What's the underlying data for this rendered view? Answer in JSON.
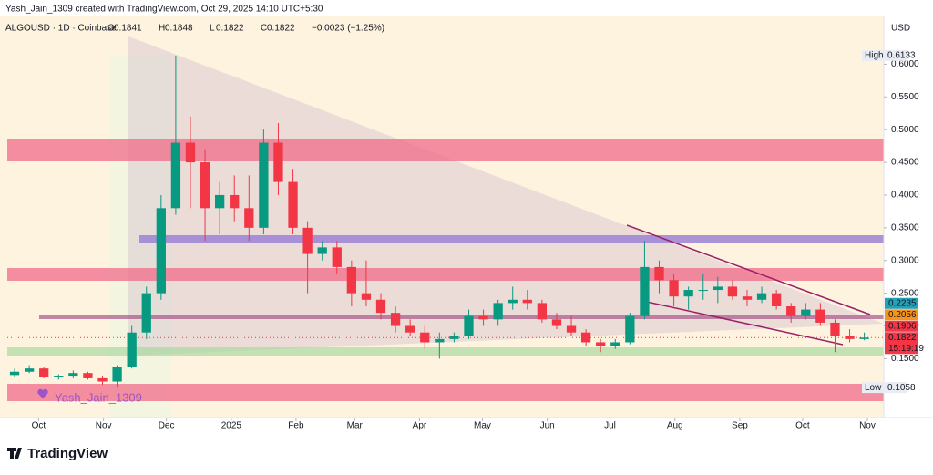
{
  "header": "Yash_Jain_1309 created with TradingView.com, Oct 29, 2025 14:10 UTC+5:30",
  "chart_data": {
    "type": "candlestick",
    "symbol": "ALGOUSD · 1D · Coinbase",
    "ohlc_legend": [
      {
        "label": "O",
        "value": 0.1841
      },
      {
        "label": "H",
        "value": 0.1848
      },
      {
        "label": "L",
        "value": 0.1822
      },
      {
        "label": "C",
        "value": 0.1822
      }
    ],
    "change": "−0.0023 (−1.25%)",
    "currency": "USD",
    "categories": [
      null,
      null,
      null,
      null,
      null,
      null,
      null,
      null,
      null,
      null,
      null,
      null,
      null,
      null,
      null,
      null,
      null,
      null,
      null,
      null,
      null,
      null,
      null,
      null,
      null,
      null,
      null,
      null,
      null,
      null,
      null,
      null,
      null,
      null,
      null,
      null,
      null,
      null,
      null,
      null,
      null,
      null,
      null,
      null,
      null,
      null,
      null,
      null,
      null,
      null,
      null,
      null,
      null,
      null,
      null,
      null,
      null,
      null,
      null
    ],
    "open": [
      0.125,
      0.13,
      0.135,
      0.122,
      0.124,
      0.128,
      0.12,
      0.115,
      0.138,
      0.19,
      0.25,
      0.38,
      0.48,
      0.45,
      0.38,
      0.4,
      0.38,
      0.35,
      0.48,
      0.42,
      0.35,
      0.31,
      0.32,
      0.29,
      0.25,
      0.24,
      0.22,
      0.2,
      0.19,
      0.175,
      0.18,
      0.185,
      0.215,
      0.21,
      0.235,
      0.24,
      0.235,
      0.21,
      0.2,
      0.19,
      0.175,
      0.17,
      0.175,
      0.215,
      0.29,
      0.27,
      0.245,
      0.255,
      0.255,
      0.26,
      0.245,
      0.24,
      0.25,
      0.23,
      0.215,
      0.225,
      0.205,
      0.185,
      0.18
    ],
    "high": [
      0.135,
      0.14,
      0.137,
      0.126,
      0.132,
      0.13,
      0.124,
      0.14,
      0.2,
      0.26,
      0.4,
      0.6133,
      0.52,
      0.47,
      0.42,
      0.43,
      0.43,
      0.5,
      0.51,
      0.44,
      0.36,
      0.33,
      0.33,
      0.3,
      0.3,
      0.25,
      0.23,
      0.21,
      0.2,
      0.19,
      0.19,
      0.225,
      0.225,
      0.24,
      0.26,
      0.255,
      0.24,
      0.22,
      0.215,
      0.195,
      0.18,
      0.18,
      0.22,
      0.33,
      0.3,
      0.28,
      0.26,
      0.28,
      0.275,
      0.27,
      0.255,
      0.26,
      0.255,
      0.235,
      0.235,
      0.235,
      0.21,
      0.195,
      0.19
    ],
    "low": [
      0.122,
      0.128,
      0.12,
      0.118,
      0.12,
      0.118,
      0.11,
      0.1058,
      0.135,
      0.18,
      0.24,
      0.37,
      0.38,
      0.33,
      0.34,
      0.36,
      0.33,
      0.34,
      0.4,
      0.34,
      0.25,
      0.3,
      0.28,
      0.23,
      0.23,
      0.21,
      0.19,
      0.185,
      0.165,
      0.15,
      0.175,
      0.18,
      0.2,
      0.2,
      0.225,
      0.225,
      0.205,
      0.195,
      0.185,
      0.17,
      0.16,
      0.165,
      0.172,
      0.21,
      0.25,
      0.23,
      0.225,
      0.24,
      0.235,
      0.24,
      0.23,
      0.235,
      0.225,
      0.205,
      0.21,
      0.2,
      0.16,
      0.175,
      0.178
    ],
    "close": [
      0.13,
      0.135,
      0.122,
      0.124,
      0.128,
      0.12,
      0.115,
      0.138,
      0.19,
      0.25,
      0.38,
      0.48,
      0.45,
      0.38,
      0.4,
      0.38,
      0.35,
      0.48,
      0.42,
      0.35,
      0.31,
      0.32,
      0.29,
      0.25,
      0.24,
      0.22,
      0.2,
      0.19,
      0.175,
      0.18,
      0.185,
      0.215,
      0.21,
      0.235,
      0.24,
      0.235,
      0.21,
      0.2,
      0.19,
      0.175,
      0.17,
      0.175,
      0.215,
      0.29,
      0.27,
      0.245,
      0.255,
      0.255,
      0.26,
      0.245,
      0.24,
      0.25,
      0.23,
      0.215,
      0.225,
      0.205,
      0.185,
      0.18,
      0.1822
    ],
    "up_color": "#089981",
    "down_color": "#f23645",
    "xlim": [
      -0.5,
      59.33
    ],
    "xticks": [
      {
        "value": 1.64,
        "label": "Oct"
      },
      {
        "value": 6.07,
        "label": "Nov"
      },
      {
        "value": 10.36,
        "label": "Dec"
      },
      {
        "value": 14.79,
        "label": "2025"
      },
      {
        "value": 19.21,
        "label": "Feb"
      },
      {
        "value": 23.21,
        "label": "Mar"
      },
      {
        "value": 27.64,
        "label": "Apr"
      },
      {
        "value": 31.93,
        "label": "May"
      },
      {
        "value": 36.36,
        "label": "Jun"
      },
      {
        "value": 40.64,
        "label": "Jul"
      },
      {
        "value": 45.07,
        "label": "Aug"
      },
      {
        "value": 49.5,
        "label": "Sep"
      },
      {
        "value": 53.79,
        "label": "Oct"
      },
      {
        "value": 58.21,
        "label": "Nov"
      }
    ],
    "ylim": [
      0.06,
      0.673
    ],
    "yticks": [
      {
        "value": 0.6,
        "label": "0.6000"
      },
      {
        "value": 0.55,
        "label": "0.5500"
      },
      {
        "value": 0.5,
        "label": "0.5000"
      },
      {
        "value": 0.45,
        "label": "0.4500"
      },
      {
        "value": 0.4,
        "label": "0.4000"
      },
      {
        "value": 0.35,
        "label": "0.3500"
      },
      {
        "value": 0.3,
        "label": "0.3000"
      },
      {
        "value": 0.25,
        "label": "0.2500"
      },
      {
        "value": 0.2,
        "label": "0.2000"
      },
      {
        "value": 0.15,
        "label": "0.1500"
      }
    ],
    "high_marker": {
      "label": "High",
      "value": 0.6133
    },
    "low_marker": {
      "label": "Low",
      "value": 0.1058
    },
    "price_labels": [
      {
        "value": 0.2235,
        "color": "#26a0b5"
      },
      {
        "value": 0.2056,
        "color": "#f7931a"
      },
      {
        "value": 0.1906,
        "color": "#f23645"
      },
      {
        "value": 0.1822,
        "color": "#f23645"
      }
    ],
    "countdown": "15:19:19",
    "watermark": "Yash_Jain_1309"
  },
  "footer": "TradingView"
}
